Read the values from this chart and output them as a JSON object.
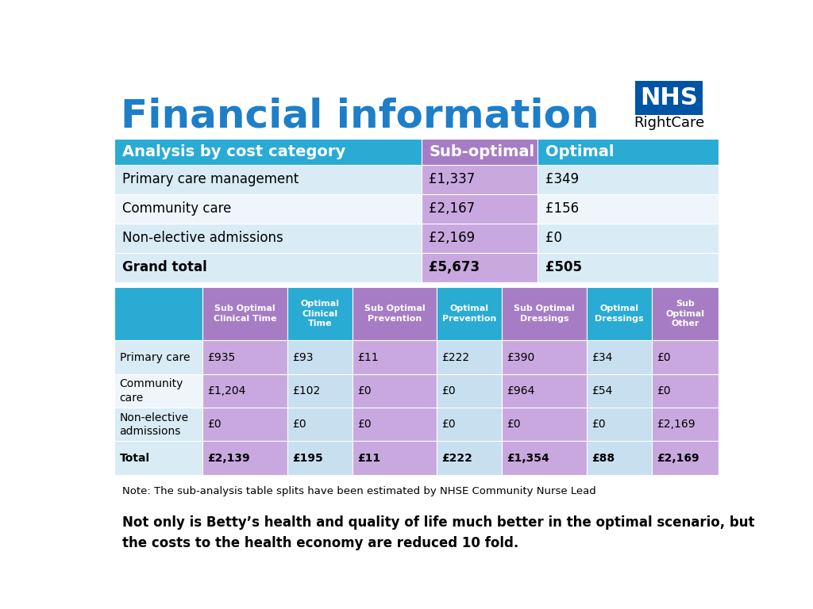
{
  "title": "Financial information",
  "title_color": "#1E7EC8",
  "bg_color": "#FFFFFF",
  "top_table": {
    "header": [
      "Analysis by cost category",
      "Sub-optimal",
      "Optimal"
    ],
    "rows": [
      [
        "Primary care management",
        "£1,337",
        "£349"
      ],
      [
        "Community care",
        "£2,167",
        "£156"
      ],
      [
        "Non-elective admissions",
        "£2,169",
        "£0"
      ],
      [
        "Grand total",
        "£5,673",
        "£505"
      ]
    ]
  },
  "bottom_table": {
    "headers": [
      "",
      "Sub Optimal\nClinical Time",
      "Optimal\nClinical\nTime",
      "Sub Optimal\nPrevention",
      "Optimal\nPrevention",
      "Sub Optimal\nDressings",
      "Optimal\nDressings",
      "Sub\nOptimal\nOther"
    ],
    "rows": [
      [
        "Primary care",
        "£935",
        "£93",
        "£11",
        "£222",
        "£390",
        "£34",
        "£0"
      ],
      [
        "Community\ncare",
        "£1,204",
        "£102",
        "£0",
        "£0",
        "£964",
        "£54",
        "£0"
      ],
      [
        "Non-elective\nadmissions",
        "£0",
        "£0",
        "£0",
        "£0",
        "£0",
        "£0",
        "£2,169"
      ],
      [
        "Total",
        "£2,139",
        "£195",
        "£11",
        "£222",
        "£1,354",
        "£88",
        "£2,169"
      ]
    ]
  },
  "note": "Note: The sub-analysis table splits have been estimated by NHSE Community Nurse Lead",
  "footnote": "Not only is Betty’s health and quality of life much better in the optimal scenario, but\nthe costs to the health economy are reduced 10 fold.",
  "colors": {
    "teal": "#29ABD4",
    "purple": "#A67DC5",
    "purple_light": "#C9A8E0",
    "light_blue": "#C8DFF0",
    "light_blue2": "#D6E8F0",
    "white": "#FFFFFF",
    "black": "#000000",
    "nhs_blue": "#0054A4",
    "row_odd": "#D9EBF5",
    "row_even": "#EFF6FB"
  }
}
